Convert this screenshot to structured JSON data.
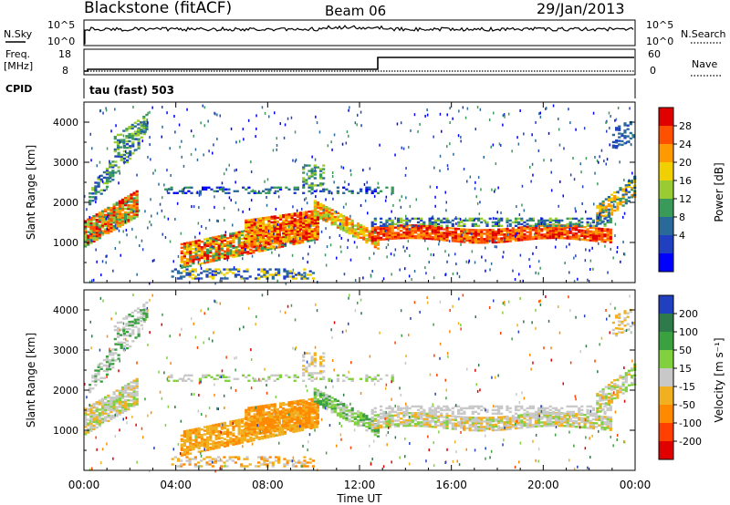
{
  "header": {
    "title": "Blackstone (fitACF)",
    "beam": "Beam 06",
    "date": "29/Jan/2013"
  },
  "top_panels": {
    "nsky_label": "N.Sky",
    "nsearch_label": "N.Search",
    "noise_ticks_left": [
      "10^5",
      "10^0"
    ],
    "noise_ticks_right": [
      "10^5",
      "10^0"
    ],
    "freq_label_line1": "Freq.",
    "freq_label_line2": "[MHz]",
    "freq_ticks": [
      "18",
      "8"
    ],
    "nave_label": "Nave",
    "nave_ticks": [
      "60",
      "0"
    ],
    "cpid_label": "CPID",
    "cpid_text": "tau (fast) 503"
  },
  "chart_data": [
    {
      "type": "heatmap",
      "name": "power",
      "ylabel": "Slant Range [km]",
      "y_ticks": [
        "1000",
        "2000",
        "3000",
        "4000"
      ],
      "ylim": [
        0,
        4500
      ],
      "colorbar_label": "Power [dB]",
      "colorbar_ticks": [
        "28",
        "24",
        "20",
        "16",
        "12",
        "8",
        "4"
      ],
      "colorbar_colors": [
        "#e00000",
        "#ff5000",
        "#ff9900",
        "#f0d000",
        "#99cc33",
        "#3a9a5a",
        "#2a6a9a",
        "#2040c0",
        "#0000ff"
      ]
    },
    {
      "type": "heatmap",
      "name": "velocity",
      "ylabel": "Slant Range [km]",
      "y_ticks": [
        "1000",
        "2000",
        "3000",
        "4000"
      ],
      "ylim": [
        0,
        4500
      ],
      "colorbar_label": "Velocity [m s⁻¹]",
      "colorbar_ticks": [
        "200",
        "100",
        "50",
        "15",
        "-15",
        "-50",
        "-100",
        "-200"
      ],
      "colorbar_colors": [
        "#2040c0",
        "#2e7a4a",
        "#3aa040",
        "#80d040",
        "#c8c8c8",
        "#f0b020",
        "#ff8a00",
        "#ff4000",
        "#e00000"
      ]
    }
  ],
  "xaxis": {
    "label": "Time UT",
    "ticks": [
      "00:00",
      "04:00",
      "08:00",
      "12:00",
      "16:00",
      "20:00",
      "00:00"
    ]
  }
}
